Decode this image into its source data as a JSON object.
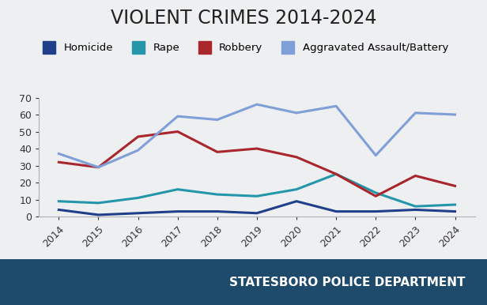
{
  "chart_data": {
    "type": "line",
    "title": "VIOLENT CRIMES 2014-2024",
    "categories": [
      "2014",
      "2015",
      "2016",
      "2017",
      "2018",
      "2019",
      "2020",
      "2021",
      "2022",
      "2023",
      "2024"
    ],
    "series": [
      {
        "name": "Homicide",
        "color": "#1f3f8a",
        "values": [
          4,
          1,
          2,
          3,
          3,
          2,
          9,
          3,
          3,
          4,
          3
        ]
      },
      {
        "name": "Rape",
        "color": "#2496aa",
        "values": [
          9,
          8,
          11,
          16,
          13,
          12,
          16,
          25,
          14,
          6,
          7
        ]
      },
      {
        "name": "Robbery",
        "color": "#a8262c",
        "values": [
          32,
          29,
          47,
          50,
          38,
          40,
          35,
          25,
          12,
          24,
          18
        ]
      },
      {
        "name": "Aggravated Assault/Battery",
        "color": "#7f9fd8",
        "values": [
          37,
          29,
          39,
          59,
          57,
          66,
          61,
          65,
          36,
          61,
          60
        ]
      }
    ],
    "ylim": [
      0,
      70
    ],
    "yticks": [
      0,
      10,
      20,
      30,
      40,
      50,
      60,
      70
    ],
    "grid": false,
    "legend": "upper center"
  },
  "footer": "STATESBORO POLICE DEPARTMENT"
}
